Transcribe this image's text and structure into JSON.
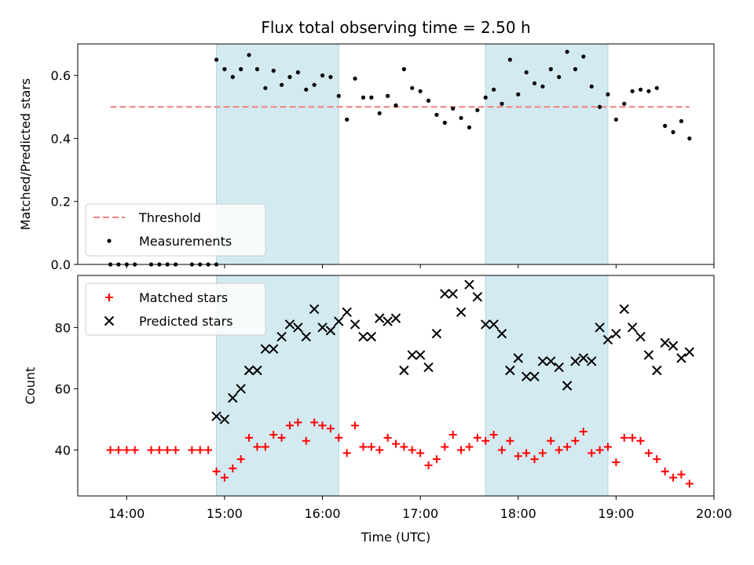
{
  "chart_data": [
    {
      "type": "scatter",
      "title": "Flux total observing time = 2.50 h",
      "xlabel": "",
      "ylabel": "Matched/Predicted stars",
      "xlim": [
        "13:30",
        "20:00"
      ],
      "ylim": [
        0.0,
        0.7
      ],
      "yticks": [
        0.0,
        0.2,
        0.4,
        0.6
      ],
      "yticklabels": [
        "0.0",
        "0.2",
        "0.4",
        "0.6"
      ],
      "grid": false,
      "legend_position": "lower-left",
      "shaded_intervals": [
        [
          "14:55",
          "16:10"
        ],
        [
          "17:40",
          "18:55"
        ]
      ],
      "shade_color": "#d4eaf1",
      "threshold": {
        "name": "Threshold",
        "value": 0.5,
        "x_range": [
          "13:50",
          "19:45"
        ],
        "color": "#f08080",
        "style": "dashed"
      },
      "series": [
        {
          "name": "Measurements",
          "marker": "dot",
          "color": "#000000",
          "points": [
            [
              "13:50",
              0.0
            ],
            [
              "13:55",
              0.0
            ],
            [
              "14:00",
              0.0
            ],
            [
              "14:05",
              0.0
            ],
            [
              "14:15",
              0.0
            ],
            [
              "14:20",
              0.0
            ],
            [
              "14:25",
              0.0
            ],
            [
              "14:30",
              0.0
            ],
            [
              "14:40",
              0.0
            ],
            [
              "14:45",
              0.0
            ],
            [
              "14:50",
              0.0
            ],
            [
              "14:55",
              0.0
            ],
            [
              "14:55",
              0.65
            ],
            [
              "15:00",
              0.62
            ],
            [
              "15:05",
              0.595
            ],
            [
              "15:10",
              0.62
            ],
            [
              "15:15",
              0.665
            ],
            [
              "15:20",
              0.62
            ],
            [
              "15:25",
              0.56
            ],
            [
              "15:30",
              0.615
            ],
            [
              "15:35",
              0.57
            ],
            [
              "15:40",
              0.595
            ],
            [
              "15:45",
              0.61
            ],
            [
              "15:50",
              0.555
            ],
            [
              "15:55",
              0.57
            ],
            [
              "16:00",
              0.6
            ],
            [
              "16:05",
              0.595
            ],
            [
              "16:10",
              0.535
            ],
            [
              "16:15",
              0.46
            ],
            [
              "16:20",
              0.59
            ],
            [
              "16:25",
              0.53
            ],
            [
              "16:30",
              0.53
            ],
            [
              "16:35",
              0.48
            ],
            [
              "16:40",
              0.535
            ],
            [
              "16:45",
              0.505
            ],
            [
              "16:50",
              0.62
            ],
            [
              "16:55",
              0.56
            ],
            [
              "17:00",
              0.55
            ],
            [
              "17:05",
              0.52
            ],
            [
              "17:10",
              0.475
            ],
            [
              "17:15",
              0.45
            ],
            [
              "17:20",
              0.495
            ],
            [
              "17:25",
              0.465
            ],
            [
              "17:30",
              0.435
            ],
            [
              "17:35",
              0.49
            ],
            [
              "17:40",
              0.53
            ],
            [
              "17:45",
              0.555
            ],
            [
              "17:50",
              0.51
            ],
            [
              "17:55",
              0.65
            ],
            [
              "18:00",
              0.54
            ],
            [
              "18:05",
              0.61
            ],
            [
              "18:10",
              0.575
            ],
            [
              "18:15",
              0.565
            ],
            [
              "18:20",
              0.62
            ],
            [
              "18:25",
              0.595
            ],
            [
              "18:30",
              0.675
            ],
            [
              "18:35",
              0.62
            ],
            [
              "18:40",
              0.66
            ],
            [
              "18:45",
              0.565
            ],
            [
              "18:50",
              0.5
            ],
            [
              "18:55",
              0.54
            ],
            [
              "19:00",
              0.46
            ],
            [
              "19:05",
              0.51
            ],
            [
              "19:10",
              0.55
            ],
            [
              "19:15",
              0.555
            ],
            [
              "19:20",
              0.55
            ],
            [
              "19:25",
              0.56
            ],
            [
              "19:30",
              0.44
            ],
            [
              "19:35",
              0.42
            ],
            [
              "19:40",
              0.455
            ],
            [
              "19:45",
              0.4
            ]
          ]
        }
      ]
    },
    {
      "type": "scatter",
      "title": "",
      "xlabel": "Time (UTC)",
      "ylabel": "Count",
      "xlim": [
        "13:30",
        "20:00"
      ],
      "ylim": [
        25,
        97
      ],
      "yticks": [
        40,
        60,
        80
      ],
      "yticklabels": [
        "40",
        "60",
        "80"
      ],
      "xticks": [
        "14:00",
        "15:00",
        "16:00",
        "17:00",
        "18:00",
        "19:00",
        "20:00"
      ],
      "xticklabels": [
        "14:00",
        "15:00",
        "16:00",
        "17:00",
        "18:00",
        "19:00",
        "20:00"
      ],
      "grid": false,
      "legend_position": "top-left",
      "shaded_intervals": [
        [
          "14:55",
          "16:10"
        ],
        [
          "17:40",
          "18:55"
        ]
      ],
      "shade_color": "#d4eaf1",
      "series": [
        {
          "name": "Matched stars",
          "marker": "plus",
          "color": "#ff0000",
          "points": [
            [
              "13:50",
              40
            ],
            [
              "13:55",
              40
            ],
            [
              "14:00",
              40
            ],
            [
              "14:05",
              40
            ],
            [
              "14:15",
              40
            ],
            [
              "14:20",
              40
            ],
            [
              "14:25",
              40
            ],
            [
              "14:30",
              40
            ],
            [
              "14:40",
              40
            ],
            [
              "14:45",
              40
            ],
            [
              "14:50",
              40
            ],
            [
              "14:55",
              33
            ],
            [
              "15:00",
              31
            ],
            [
              "15:05",
              34
            ],
            [
              "15:10",
              37
            ],
            [
              "15:15",
              44
            ],
            [
              "15:20",
              41
            ],
            [
              "15:25",
              41
            ],
            [
              "15:30",
              45
            ],
            [
              "15:35",
              44
            ],
            [
              "15:40",
              48
            ],
            [
              "15:45",
              49
            ],
            [
              "15:50",
              43
            ],
            [
              "15:55",
              49
            ],
            [
              "16:00",
              48
            ],
            [
              "16:05",
              47
            ],
            [
              "16:10",
              44
            ],
            [
              "16:15",
              39
            ],
            [
              "16:20",
              48
            ],
            [
              "16:25",
              41
            ],
            [
              "16:30",
              41
            ],
            [
              "16:35",
              40
            ],
            [
              "16:40",
              44
            ],
            [
              "16:45",
              42
            ],
            [
              "16:50",
              41
            ],
            [
              "16:55",
              40
            ],
            [
              "17:00",
              39
            ],
            [
              "17:05",
              35
            ],
            [
              "17:10",
              37
            ],
            [
              "17:15",
              41
            ],
            [
              "17:20",
              45
            ],
            [
              "17:25",
              40
            ],
            [
              "17:30",
              41
            ],
            [
              "17:35",
              44
            ],
            [
              "17:40",
              43
            ],
            [
              "17:45",
              45
            ],
            [
              "17:50",
              40
            ],
            [
              "17:55",
              43
            ],
            [
              "18:00",
              38
            ],
            [
              "18:05",
              39
            ],
            [
              "18:10",
              37
            ],
            [
              "18:15",
              39
            ],
            [
              "18:20",
              43
            ],
            [
              "18:25",
              40
            ],
            [
              "18:30",
              41
            ],
            [
              "18:35",
              43
            ],
            [
              "18:40",
              46
            ],
            [
              "18:45",
              39
            ],
            [
              "18:50",
              40
            ],
            [
              "18:55",
              41
            ],
            [
              "19:00",
              36
            ],
            [
              "19:05",
              44
            ],
            [
              "19:10",
              44
            ],
            [
              "19:15",
              43
            ],
            [
              "19:20",
              39
            ],
            [
              "19:25",
              37
            ],
            [
              "19:30",
              33
            ],
            [
              "19:35",
              31
            ],
            [
              "19:40",
              32
            ],
            [
              "19:45",
              29
            ]
          ]
        },
        {
          "name": "Predicted stars",
          "marker": "x",
          "color": "#000000",
          "points": [
            [
              "14:55",
              51
            ],
            [
              "15:00",
              50
            ],
            [
              "15:05",
              57
            ],
            [
              "15:10",
              60
            ],
            [
              "15:15",
              66
            ],
            [
              "15:20",
              66
            ],
            [
              "15:25",
              73
            ],
            [
              "15:30",
              73
            ],
            [
              "15:35",
              77
            ],
            [
              "15:40",
              81
            ],
            [
              "15:45",
              80
            ],
            [
              "15:50",
              77
            ],
            [
              "15:55",
              86
            ],
            [
              "16:00",
              80
            ],
            [
              "16:05",
              79
            ],
            [
              "16:10",
              82
            ],
            [
              "16:15",
              85
            ],
            [
              "16:20",
              81
            ],
            [
              "16:25",
              77
            ],
            [
              "16:30",
              77
            ],
            [
              "16:35",
              83
            ],
            [
              "16:40",
              82
            ],
            [
              "16:45",
              83
            ],
            [
              "16:50",
              66
            ],
            [
              "16:55",
              71
            ],
            [
              "17:00",
              71
            ],
            [
              "17:05",
              67
            ],
            [
              "17:10",
              78
            ],
            [
              "17:15",
              91
            ],
            [
              "17:20",
              91
            ],
            [
              "17:25",
              85
            ],
            [
              "17:30",
              94
            ],
            [
              "17:35",
              90
            ],
            [
              "17:40",
              81
            ],
            [
              "17:45",
              81
            ],
            [
              "17:50",
              78
            ],
            [
              "17:55",
              66
            ],
            [
              "18:00",
              70
            ],
            [
              "18:05",
              64
            ],
            [
              "18:10",
              64
            ],
            [
              "18:15",
              69
            ],
            [
              "18:20",
              69
            ],
            [
              "18:25",
              67
            ],
            [
              "18:30",
              61
            ],
            [
              "18:35",
              69
            ],
            [
              "18:40",
              70
            ],
            [
              "18:45",
              69
            ],
            [
              "18:50",
              80
            ],
            [
              "18:55",
              76
            ],
            [
              "19:00",
              78
            ],
            [
              "19:05",
              86
            ],
            [
              "19:10",
              80
            ],
            [
              "19:15",
              77
            ],
            [
              "19:20",
              71
            ],
            [
              "19:25",
              66
            ],
            [
              "19:30",
              75
            ],
            [
              "19:35",
              74
            ],
            [
              "19:40",
              70
            ],
            [
              "19:45",
              72
            ]
          ]
        }
      ]
    }
  ]
}
